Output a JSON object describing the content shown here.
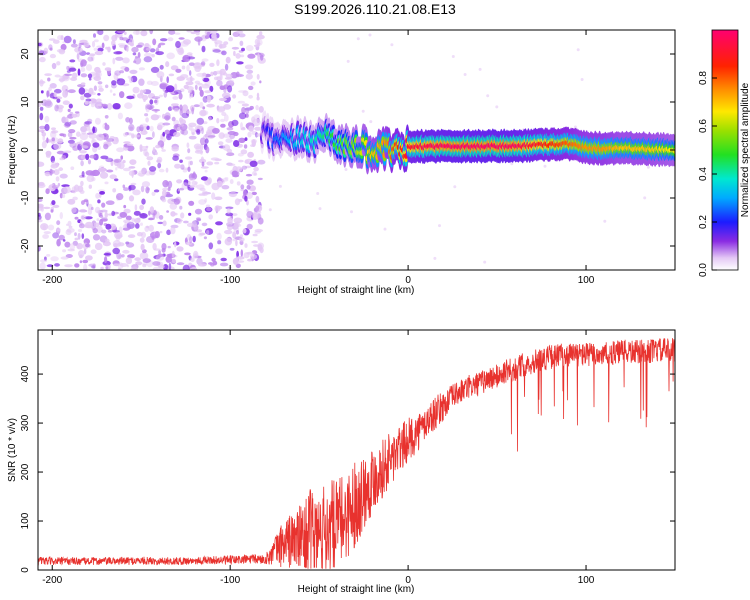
{
  "title": "S199.2026.110.21.08.E13",
  "chart_data": [
    {
      "type": "heatmap",
      "name": "spectrogram",
      "title": "S199.2026.110.21.08.E13",
      "xlabel": "Height of straight line (km)",
      "ylabel": "Frequency (Hz)",
      "xlim": [
        -208,
        150
      ],
      "ylim": [
        -25,
        25
      ],
      "xticks": [
        -200,
        -100,
        0,
        100
      ],
      "yticks": [
        -20,
        -10,
        0,
        10,
        20
      ],
      "colorbar": {
        "label": "Normalized spectral amplitude",
        "range": [
          0,
          1
        ],
        "ticks": [
          0.0,
          0.2,
          0.4,
          0.6,
          0.8
        ],
        "tick_labels": [
          "0.0",
          "0.2",
          "0.4",
          "0.6",
          "0.8"
        ]
      },
      "noise_region": {
        "x_range": [
          -208,
          -82
        ],
        "freq_range": [
          -25,
          25
        ],
        "amplitude": [
          0.05,
          0.2
        ]
      },
      "signal_ridge": {
        "x": [
          -82,
          -75,
          -68,
          -60,
          -52,
          -45,
          -40,
          -35,
          -28,
          -20,
          -12,
          -5,
          0,
          10,
          20,
          40,
          60,
          80,
          90,
          100,
          110,
          120,
          135,
          150
        ],
        "freq": [
          3.5,
          2.0,
          1.5,
          2.5,
          2.0,
          3.5,
          2.0,
          0.5,
          1.0,
          -0.5,
          0.0,
          -0.5,
          0.5,
          0.8,
          0.8,
          0.8,
          0.8,
          1.2,
          1.3,
          0.5,
          0.3,
          0.5,
          0.2,
          0.0
        ],
        "amplitude": [
          0.15,
          0.25,
          0.3,
          0.35,
          0.4,
          0.45,
          0.5,
          0.55,
          0.6,
          0.7,
          0.75,
          0.85,
          0.9,
          0.95,
          0.97,
          0.98,
          0.97,
          0.85,
          0.8,
          0.75,
          0.75,
          0.7,
          0.7,
          0.65
        ]
      }
    },
    {
      "type": "line",
      "name": "snr",
      "xlabel": "Height of straight line (km)",
      "ylabel": "SNR (10 * v/v)",
      "xlim": [
        -208,
        150
      ],
      "ylim": [
        0,
        490
      ],
      "xticks": [
        -200,
        -100,
        0,
        100
      ],
      "yticks": [
        0,
        100,
        200,
        300,
        400
      ],
      "color": "#e8322e",
      "series": [
        {
          "name": "SNR",
          "x": [
            -208,
            -190,
            -170,
            -150,
            -130,
            -110,
            -100,
            -90,
            -80,
            -75,
            -70,
            -65,
            -60,
            -55,
            -50,
            -45,
            -40,
            -35,
            -30,
            -25,
            -20,
            -15,
            -10,
            -5,
            0,
            5,
            10,
            15,
            20,
            25,
            30,
            35,
            40,
            45,
            50,
            55,
            60,
            65,
            70,
            75,
            80,
            85,
            90,
            100,
            110,
            120,
            130,
            140,
            150
          ],
          "values": [
            18,
            18,
            18,
            19,
            18,
            20,
            20,
            22,
            22,
            38,
            55,
            60,
            65,
            75,
            70,
            85,
            95,
            110,
            135,
            160,
            185,
            205,
            225,
            245,
            265,
            280,
            300,
            320,
            335,
            355,
            365,
            375,
            380,
            390,
            395,
            405,
            410,
            420,
            425,
            430,
            435,
            438,
            440,
            440,
            440,
            445,
            445,
            448,
            450
          ],
          "noise_amplitude": [
            8,
            8,
            8,
            8,
            8,
            8,
            10,
            10,
            10,
            30,
            50,
            60,
            70,
            90,
            90,
            100,
            90,
            90,
            90,
            80,
            70,
            60,
            60,
            50,
            45,
            40,
            35,
            35,
            30,
            25,
            25,
            25,
            25,
            25,
            25,
            25,
            25,
            25,
            25,
            25,
            25,
            25,
            25,
            25,
            25,
            25,
            25,
            25,
            25
          ]
        }
      ]
    }
  ]
}
